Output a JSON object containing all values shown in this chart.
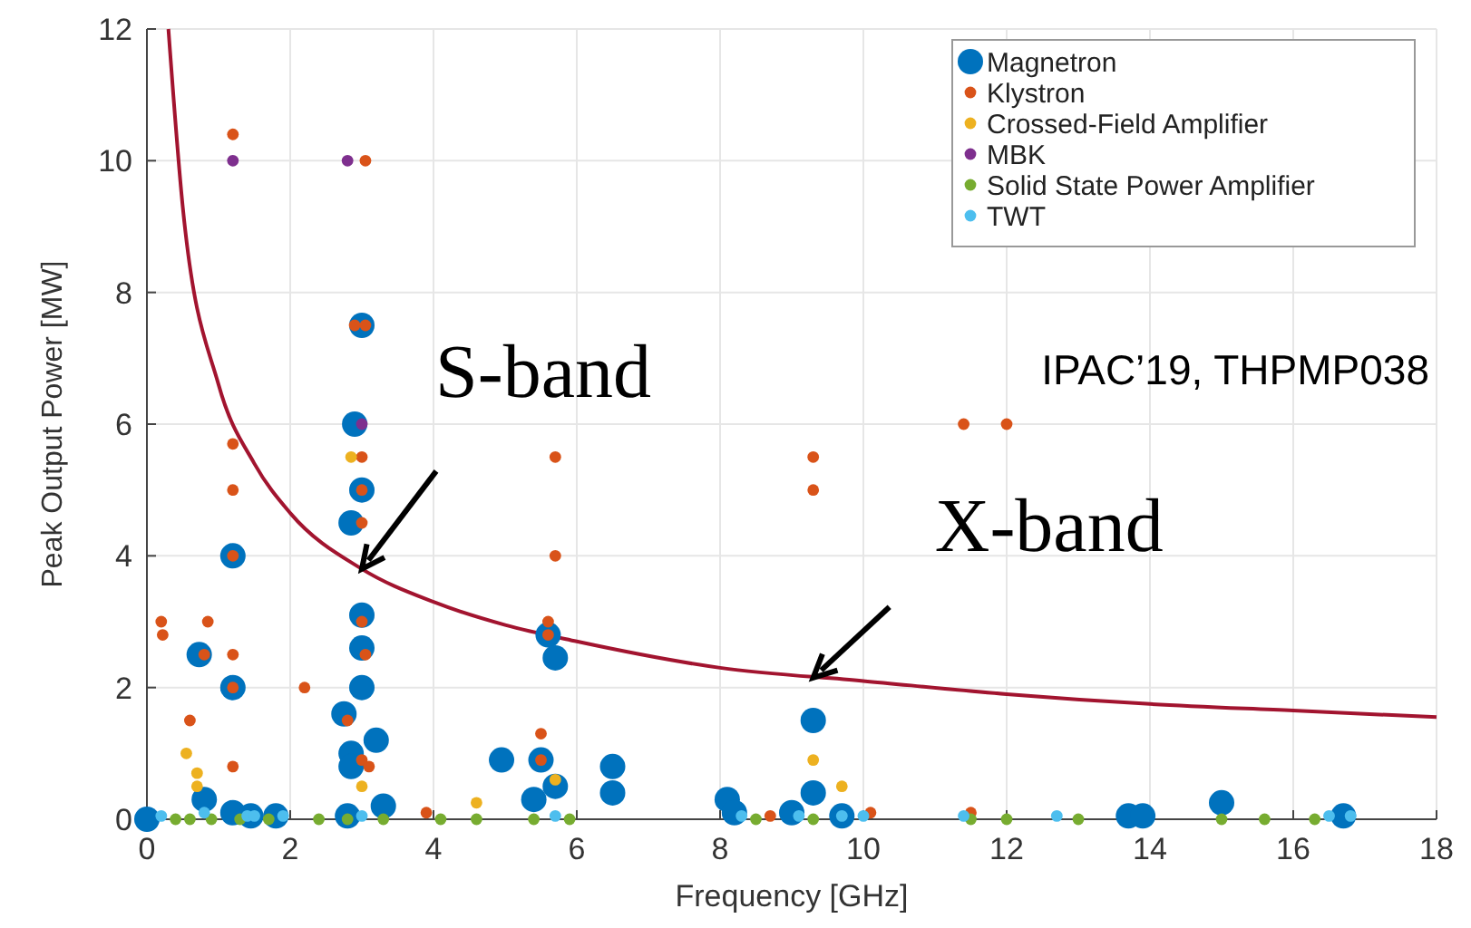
{
  "chart_data": {
    "type": "scatter",
    "xlabel": "Frequency [GHz]",
    "ylabel": "Peak Output Power [MW]",
    "xlim": [
      0,
      18
    ],
    "ylim": [
      0,
      12
    ],
    "xticks": [
      0,
      2,
      4,
      6,
      8,
      10,
      12,
      14,
      16,
      18
    ],
    "yticks": [
      0,
      2,
      4,
      6,
      8,
      10,
      12
    ],
    "grid": true,
    "legend": "top right",
    "marker": "circle",
    "annotations": [
      {
        "text": "S-band",
        "x": 3,
        "y": 3.8
      },
      {
        "text": "X-band",
        "x": 9.3,
        "y": 2.15
      },
      "IPAC’19, THPMP038"
    ],
    "series": [
      {
        "name": "Magnetron",
        "color": "#0072bd",
        "x": [
          0,
          0.73,
          0.8,
          1.2,
          1.2,
          1.2,
          1.45,
          1.8,
          2.9,
          2.85,
          3.0,
          3.0,
          3.0,
          3.0,
          3.0,
          2.75,
          2.85,
          2.85,
          3.2,
          3.3,
          2.8,
          4.95,
          5.5,
          5.4,
          5.6,
          5.7,
          5.7,
          6.5,
          6.5,
          8.1,
          8.2,
          9.3,
          9.3,
          9.0,
          9.7,
          13.7,
          13.9,
          15.0,
          16.7
        ],
        "values": [
          0,
          2.5,
          0.3,
          4.0,
          2.0,
          0.1,
          0.05,
          0.05,
          6.0,
          4.5,
          5.0,
          7.5,
          3.1,
          2.6,
          2.0,
          1.6,
          1.0,
          0.8,
          1.2,
          0.2,
          0.05,
          0.9,
          0.9,
          0.3,
          2.8,
          2.45,
          0.5,
          0.8,
          0.4,
          0.3,
          0.1,
          1.5,
          0.4,
          0.1,
          0.05,
          0.05,
          0.05,
          0.25,
          0.05
        ]
      },
      {
        "name": "Klystron",
        "color": "#d95319",
        "x": [
          0.2,
          0.22,
          0.85,
          0.6,
          0.8,
          1.2,
          1.2,
          1.2,
          1.2,
          1.2,
          1.2,
          1.2,
          2.2,
          3.05,
          2.9,
          3.05,
          3.0,
          3.0,
          3.0,
          3.0,
          3.05,
          2.8,
          3.0,
          3.1,
          3.9,
          5.7,
          5.7,
          5.6,
          5.6,
          5.5,
          5.5,
          9.3,
          9.3,
          11.4,
          12.0,
          8.7,
          10.1,
          11.5
        ],
        "values": [
          3.0,
          2.8,
          3.0,
          1.5,
          2.5,
          10.4,
          5.7,
          5.0,
          4.0,
          2.5,
          2.0,
          0.8,
          2.0,
          10.0,
          7.5,
          7.5,
          5.5,
          5.0,
          4.5,
          3.0,
          2.5,
          1.5,
          0.9,
          0.8,
          0.1,
          5.5,
          4.0,
          3.0,
          2.8,
          1.3,
          0.9,
          5.5,
          5.0,
          6.0,
          6.0,
          0.05,
          0.1,
          0.1
        ]
      },
      {
        "name": "Crossed-Field Amplifier",
        "color": "#edb120",
        "x": [
          0.55,
          0.7,
          0.7,
          2.85,
          3.0,
          4.6,
          5.7,
          9.3,
          9.7
        ],
        "values": [
          1.0,
          0.7,
          0.5,
          5.5,
          0.5,
          0.25,
          0.6,
          0.9,
          0.5
        ]
      },
      {
        "name": "MBK",
        "color": "#7e2f8e",
        "x": [
          1.2,
          2.8,
          3.0
        ],
        "values": [
          10,
          10,
          6
        ]
      },
      {
        "name": "Solid State Power Amplifier",
        "color": "#77ac30",
        "x": [
          0.4,
          0.6,
          0.9,
          1.3,
          1.7,
          2.4,
          2.8,
          3.3,
          4.1,
          4.6,
          5.4,
          5.9,
          8.5,
          9.3,
          11.5,
          12.0,
          13.0,
          15.0,
          15.6,
          16.3
        ],
        "values": [
          0,
          0,
          0,
          0,
          0,
          0,
          0,
          0,
          0,
          0,
          0,
          0,
          0,
          0,
          0,
          0,
          0,
          0,
          0,
          0
        ]
      },
      {
        "name": "TWT",
        "color": "#4dbeee",
        "x": [
          0.2,
          0.8,
          1.4,
          1.5,
          1.9,
          3.0,
          5.7,
          8.3,
          9.1,
          9.7,
          10.0,
          11.4,
          12.7,
          16.5,
          16.8
        ],
        "values": [
          0.05,
          0.1,
          0.05,
          0.05,
          0.05,
          0.05,
          0.05,
          0.05,
          0.05,
          0.05,
          0.05,
          0.05,
          0.05,
          0.05,
          0.05
        ]
      },
      {
        "type": "line",
        "color": "#a2142f",
        "marker": "none",
        "x": [
          0.3,
          0.5,
          1,
          1.5,
          2,
          3,
          4,
          5,
          6,
          8,
          10,
          12,
          14,
          16,
          18
        ],
        "values": [
          12,
          9.3,
          6.6,
          5.4,
          4.65,
          3.8,
          3.3,
          2.95,
          2.7,
          2.3,
          2.1,
          1.9,
          1.75,
          1.65,
          1.55
        ]
      }
    ]
  }
}
